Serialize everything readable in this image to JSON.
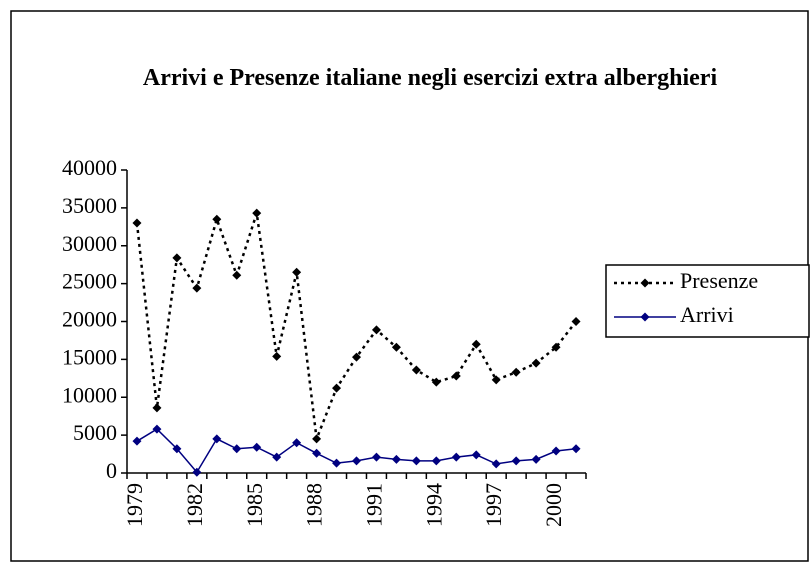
{
  "chart_data": {
    "type": "line",
    "title": "Arrivi e Presenze italiane negli esercizi extra alberghieri",
    "categories": [
      "1979",
      null,
      null,
      "1982",
      null,
      null,
      "1985",
      null,
      null,
      "1988",
      null,
      null,
      "1991",
      null,
      null,
      "1994",
      null,
      null,
      "1997",
      null,
      null,
      "2000",
      null
    ],
    "series": [
      {
        "name": "Presenze",
        "color": "#000000",
        "dash": "dotted",
        "values": [
          33000,
          8600,
          28400,
          24400,
          33500,
          26100,
          34300,
          15400,
          26500,
          4500,
          11200,
          15300,
          18900,
          16600,
          13600,
          12000,
          12800,
          17000,
          12300,
          13300,
          14500,
          16600,
          20000
        ]
      },
      {
        "name": "Arrivi",
        "color": "#000080",
        "dash": "solid",
        "values": [
          4200,
          5800,
          3200,
          100,
          4500,
          3200,
          3400,
          2100,
          4000,
          2600,
          1300,
          1600,
          2100,
          1800,
          1600,
          1600,
          2100,
          2400,
          1200,
          1600,
          1800,
          2900,
          3200
        ]
      }
    ],
    "ylim": [
      0,
      40000
    ],
    "yticks": [
      0,
      5000,
      10000,
      15000,
      20000,
      25000,
      30000,
      35000,
      40000
    ],
    "grid": false,
    "legend": "right"
  }
}
